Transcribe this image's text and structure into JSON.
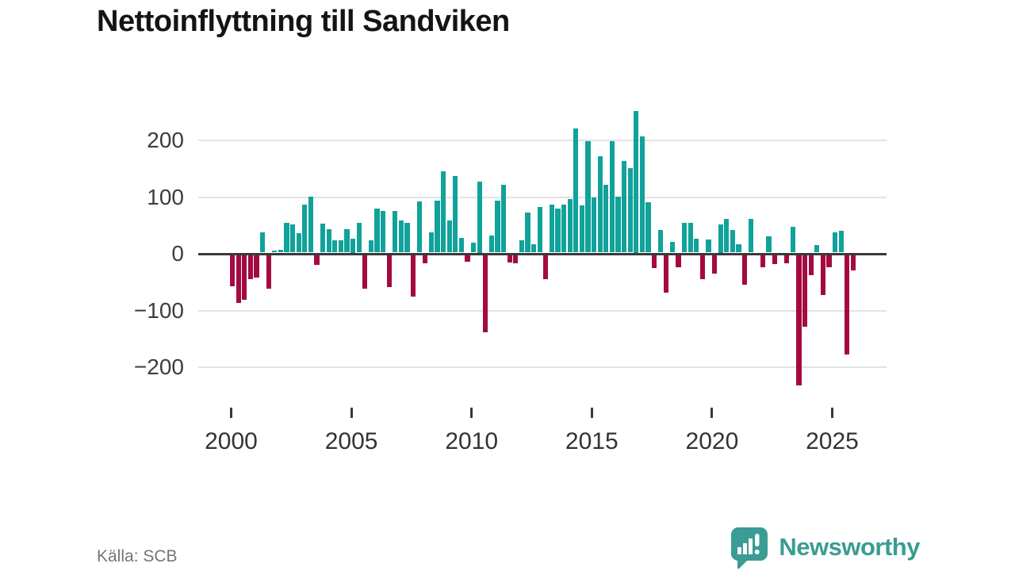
{
  "title": "Nettoinflyttning till Sandviken",
  "source": "Källa: SCB",
  "branding": {
    "name": "Newsworthy",
    "icon": "newsworthy-speech-bubble-chart-icon"
  },
  "colors": {
    "positive_bar": "#11a29b",
    "negative_bar": "#a40a42",
    "zero_line": "#3a3a3a",
    "gridline": "#e3e3e3",
    "title_text": "#141414",
    "tick_text": "#333333",
    "source_text": "#757575",
    "brand_teal": "#3a9c94"
  },
  "chart_data": {
    "type": "bar",
    "title": "Nettoinflyttning till Sandviken",
    "xlabel": "",
    "ylabel": "",
    "x_unit": "quarter",
    "start_quarter": "2000 Q1",
    "end_quarter": "2025 Q4",
    "grid": true,
    "ylim": [
      -260,
      275
    ],
    "y_ticks": [
      {
        "value": 200,
        "label": "200"
      },
      {
        "value": 100,
        "label": "100"
      },
      {
        "value": 0,
        "label": "0"
      },
      {
        "value": -100,
        "label": "−100"
      },
      {
        "value": -200,
        "label": "−200"
      }
    ],
    "x_ticks": [
      {
        "year": 2000,
        "label": "2000"
      },
      {
        "year": 2005,
        "label": "2005"
      },
      {
        "year": 2010,
        "label": "2010"
      },
      {
        "year": 2015,
        "label": "2015"
      },
      {
        "year": 2020,
        "label": "2020"
      },
      {
        "year": 2025,
        "label": "2025"
      }
    ],
    "values": [
      -55,
      -84,
      -79,
      -42,
      -40,
      36,
      -60,
      4,
      5,
      53,
      49,
      34,
      85,
      98,
      -17,
      51,
      41,
      21,
      21,
      41,
      25,
      53,
      -60,
      21,
      78,
      74,
      -57,
      74,
      57,
      53,
      -74,
      90,
      -15,
      36,
      91,
      143,
      57,
      135,
      26,
      -12,
      18,
      125,
      -136,
      30,
      91,
      119,
      -13,
      -14,
      21,
      71,
      14,
      81,
      -42,
      85,
      78,
      84,
      94,
      219,
      83,
      196,
      97,
      170,
      119,
      196,
      99,
      162,
      149,
      250,
      205,
      89,
      -23,
      40,
      -67,
      19,
      -22,
      52,
      53,
      24,
      -43,
      23,
      -33,
      50,
      59,
      40,
      15,
      -53,
      59,
      0,
      -22,
      29,
      -16,
      0,
      -14,
      45,
      -230,
      -126,
      -35,
      13,
      -70,
      -22,
      36,
      39,
      -175,
      -27
    ]
  },
  "layout_note": "quarterly net migration bars, teal positive, crimson negative"
}
